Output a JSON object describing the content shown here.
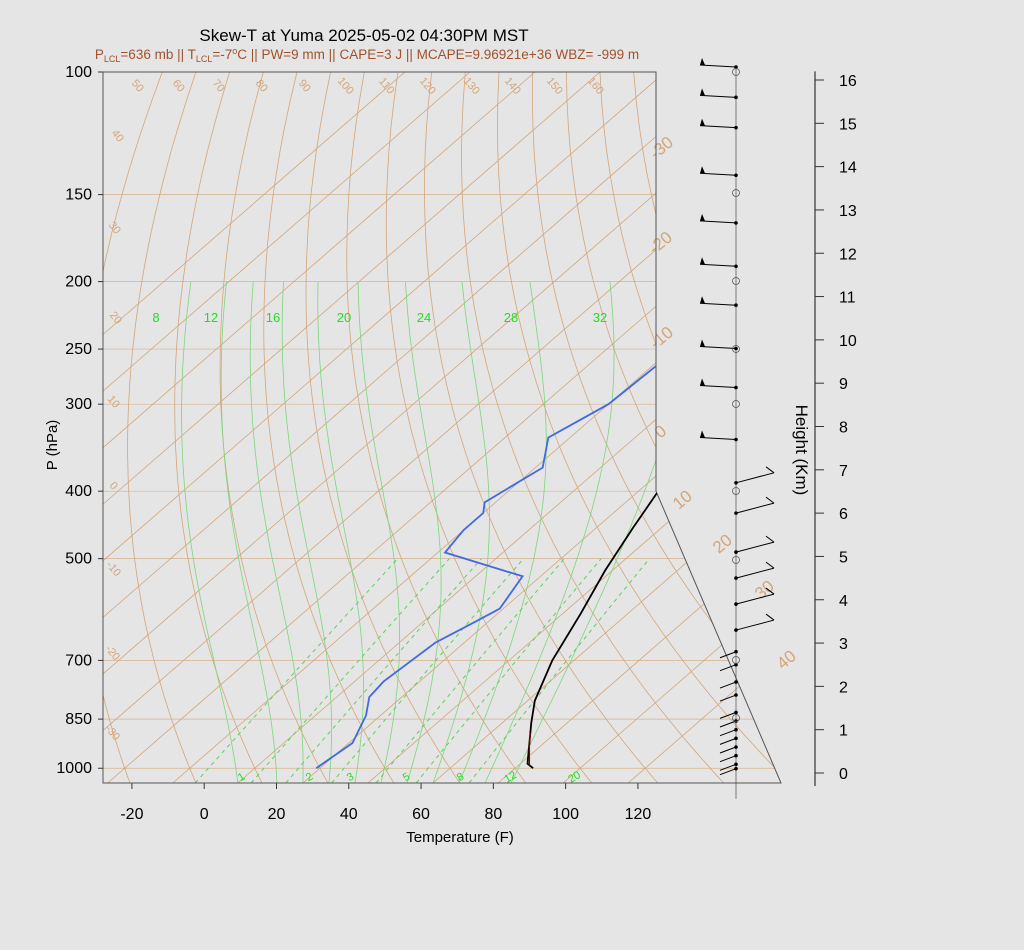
{
  "chart_data": {
    "type": "line",
    "chart_kind": "skew-t log-p sounding",
    "title": "Skew-T at Yuma 2025-05-02 04:30PM MST",
    "subtitle": {
      "p_lcl_label": "P",
      "p_lcl_sub": "LCL",
      "p_lcl_value": "=636 mb || T",
      "t_lcl_sub": "LCL",
      "t_lcl_value": "=-7",
      "deg_o": "o",
      "rest": "C || PW=9 mm || CAPE=3 J || MCAPE=9.96921e+36 WBZ= -999 m",
      "color": "#a0522d"
    },
    "xlabel": "Temperature (F)",
    "ylabel": "P (hPa)",
    "y2label": "Height (Km)",
    "xlim": [
      -28,
      125
    ],
    "ylim": [
      1050,
      100
    ],
    "y_scale": "log",
    "x_ticks": [
      "-20",
      "0",
      "20",
      "40",
      "60",
      "80",
      "100",
      "120"
    ],
    "y_ticks": [
      "100",
      "150",
      "200",
      "250",
      "300",
      "400",
      "500",
      "700",
      "850",
      "1000"
    ],
    "height_ticks": [
      "0",
      "1",
      "2",
      "3",
      "4",
      "5",
      "6",
      "7",
      "8",
      "9",
      "10",
      "11",
      "12",
      "13",
      "14",
      "15",
      "16"
    ],
    "mixing_ratio_labels_top": [
      "8",
      "12",
      "16",
      "20",
      "24",
      "28",
      "32"
    ],
    "mixing_ratio_labels_bottom": [
      "1",
      "2",
      "3",
      "5",
      "8",
      "12",
      "20"
    ],
    "isotherm_labels": [
      "-30",
      "-20",
      "-10",
      "0",
      "10",
      "20",
      "30",
      "40"
    ],
    "dry_adiabat_labels": [
      "-30",
      "-20",
      "-10",
      "0",
      "10",
      "20",
      "30",
      "40",
      "50",
      "60",
      "70",
      "80",
      "90",
      "100",
      "110",
      "120",
      "130",
      "140",
      "150",
      "160"
    ],
    "grid": true,
    "series": [
      {
        "role": "temperature",
        "color": "#000000",
        "points": [
          [
            91,
            1000
          ],
          [
            88,
            985
          ],
          [
            80,
            900
          ],
          [
            76,
            860
          ],
          [
            70,
            800
          ],
          [
            62,
            700
          ],
          [
            55,
            600
          ],
          [
            48,
            520
          ],
          [
            42,
            450
          ],
          [
            36,
            385
          ],
          [
            32,
            310
          ],
          [
            28,
            255
          ],
          [
            29,
            200
          ],
          [
            34,
            160
          ],
          [
            39,
            135
          ],
          [
            47,
            120
          ],
          [
            53,
            108
          ],
          [
            56,
            100
          ]
        ]
      },
      {
        "role": "dewpoint",
        "color": "#4169e1",
        "points": [
          [
            31,
            1000
          ],
          [
            33,
            920
          ],
          [
            28,
            840
          ],
          [
            23,
            790
          ],
          [
            22,
            750
          ],
          [
            24,
            660
          ],
          [
            28,
            620
          ],
          [
            31,
            590
          ],
          [
            27,
            530
          ],
          [
            -2,
            490
          ],
          [
            -4,
            455
          ],
          [
            -4,
            430
          ],
          [
            -7,
            415
          ],
          [
            -2,
            370
          ],
          [
            -10,
            335
          ],
          [
            -4,
            300
          ],
          [
            -3,
            265
          ],
          [
            -3,
            225
          ],
          [
            -2,
            200
          ],
          [
            -1,
            170
          ],
          [
            2,
            150
          ],
          [
            7,
            128
          ],
          [
            13,
            112
          ],
          [
            17,
            100
          ]
        ]
      },
      {
        "role": "parcel-segment",
        "color": "#8b0000",
        "points": [
          [
            89,
            990
          ],
          [
            83,
            930
          ],
          [
            79,
            890
          ]
        ]
      }
    ],
    "wind_barbs_heights_km": [
      0.1,
      0.2,
      0.4,
      0.6,
      0.8,
      1.0,
      1.2,
      1.4,
      1.8,
      2.1,
      2.5,
      2.8,
      3.3,
      3.9,
      4.5,
      5.1,
      6.0,
      6.7,
      7.7,
      8.9,
      9.8,
      10.8,
      11.7,
      12.7,
      13.8,
      14.9,
      15.6,
      16.3
    ]
  }
}
